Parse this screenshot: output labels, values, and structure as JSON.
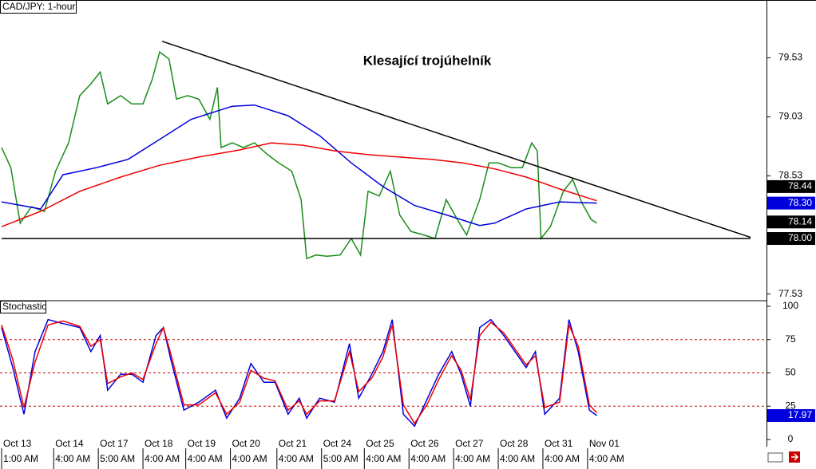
{
  "chart_data": [
    {
      "type": "line",
      "title": "CAD/JPY: 1-hour",
      "annotation": "Klesající trojúhelník",
      "xlim": [
        0,
        411.2
      ],
      "ylim": [
        77.48,
        80.02
      ],
      "yticks": [
        79.53,
        79.03,
        78.53,
        77.53
      ],
      "series": [
        {
          "color": "#1a8c1a",
          "x": [
            0,
            5,
            10,
            16,
            23,
            29,
            36,
            42,
            48,
            53,
            57,
            64,
            70,
            76,
            81,
            85,
            90,
            94,
            100,
            106,
            112,
            116,
            118,
            124,
            130,
            136,
            143,
            149,
            156,
            161,
            164,
            169,
            175,
            182,
            188,
            193,
            197,
            203,
            209,
            214,
            220,
            227,
            233,
            239,
            245,
            250,
            257,
            262,
            267,
            274,
            280,
            285,
            288,
            290,
            295,
            302,
            307,
            312,
            317,
            320
          ],
          "values": [
            78.77,
            78.6,
            78.13,
            78.27,
            78.23,
            78.57,
            78.81,
            79.21,
            79.31,
            79.41,
            79.14,
            79.21,
            79.14,
            79.14,
            79.35,
            79.58,
            79.52,
            79.18,
            79.21,
            79.18,
            79.01,
            79.28,
            78.77,
            78.81,
            78.77,
            78.81,
            78.71,
            78.64,
            78.57,
            78.33,
            77.83,
            77.86,
            77.85,
            77.86,
            78.0,
            77.86,
            78.4,
            78.36,
            78.57,
            78.2,
            78.06,
            78.03,
            78.0,
            78.33,
            78.16,
            78.03,
            78.33,
            78.64,
            78.64,
            78.6,
            78.6,
            78.81,
            78.74,
            78.0,
            78.1,
            78.4,
            78.5,
            78.3,
            78.16,
            78.13
          ]
        },
        {
          "color": "#0000dd",
          "x": [
            0,
            21,
            33,
            51,
            68,
            85,
            102,
            124,
            136,
            154,
            171,
            188,
            205,
            222,
            239,
            257,
            265,
            282,
            300,
            320
          ],
          "values": [
            78.31,
            78.25,
            78.54,
            78.6,
            78.67,
            78.84,
            79.01,
            79.12,
            79.13,
            79.04,
            78.87,
            78.64,
            78.44,
            78.28,
            78.2,
            78.11,
            78.13,
            78.25,
            78.31,
            78.3
          ]
        },
        {
          "color": "#ee0000",
          "x": [
            0,
            21,
            42,
            64,
            85,
            106,
            128,
            145,
            162,
            180,
            197,
            214,
            231,
            248,
            265,
            282,
            300,
            320
          ],
          "values": [
            78.1,
            78.23,
            78.4,
            78.52,
            78.62,
            78.69,
            78.75,
            78.81,
            78.79,
            78.74,
            78.71,
            78.69,
            78.67,
            78.64,
            78.59,
            78.52,
            78.42,
            78.32
          ]
        }
      ],
      "trendlines": [
        {
          "x": [
            86.3,
            402.6
          ],
          "y": [
            79.67,
            78.01
          ]
        },
        {
          "x": [
            0,
            402.6
          ],
          "y": [
            78.0,
            78.0
          ]
        }
      ],
      "markers": [
        {
          "value": 78.44,
          "color": "#000000"
        },
        {
          "value": 78.3,
          "label": "78.30",
          "color": "#0000dd"
        },
        {
          "value": 78.14,
          "color": "#000000"
        },
        {
          "value": 78,
          "label": "78.00",
          "color": "#000000"
        }
      ]
    },
    {
      "type": "line",
      "title": "Stochastic",
      "xlim": [
        0,
        411.2
      ],
      "ylim": [
        -5.4,
        103.6
      ],
      "yticks": [
        100,
        75,
        50,
        25,
        0
      ],
      "levels": [
        75,
        50,
        25
      ],
      "series": [
        {
          "color": "#0000dd",
          "x": [
            0,
            6,
            12,
            18,
            25,
            33,
            42,
            48,
            53,
            57,
            64,
            70,
            76,
            83,
            87,
            91,
            98,
            106,
            115,
            121,
            128,
            134,
            141,
            147,
            154,
            160,
            164,
            171,
            179,
            187,
            192,
            199,
            205,
            210,
            216,
            222,
            229,
            235,
            242,
            247,
            252,
            257,
            263,
            270,
            276,
            282,
            287,
            292,
            300,
            305,
            310,
            316,
            320
          ],
          "values": [
            84,
            54,
            19,
            66,
            90,
            87,
            84,
            66,
            78,
            37,
            49,
            49,
            43,
            78,
            84,
            60,
            22,
            28,
            37,
            16,
            31,
            57,
            43,
            43,
            19,
            31,
            16,
            31,
            28,
            72,
            31,
            49,
            66,
            90,
            19,
            10,
            31,
            49,
            66,
            49,
            25,
            84,
            90,
            78,
            66,
            54,
            66,
            19,
            31,
            90,
            66,
            22,
            17.97
          ]
        },
        {
          "color": "#ee0000",
          "x": [
            0,
            6,
            12,
            18,
            25,
            33,
            42,
            48,
            53,
            57,
            64,
            70,
            76,
            83,
            87,
            91,
            98,
            106,
            115,
            121,
            128,
            134,
            141,
            147,
            154,
            160,
            164,
            171,
            179,
            187,
            192,
            199,
            205,
            210,
            216,
            222,
            229,
            235,
            242,
            247,
            252,
            257,
            263,
            270,
            276,
            282,
            287,
            292,
            300,
            305,
            310,
            316,
            320
          ],
          "values": [
            86,
            60,
            24,
            58,
            86,
            89,
            85,
            70,
            75,
            42,
            47,
            50,
            45,
            72,
            84,
            64,
            26,
            26,
            35,
            19,
            28,
            52,
            46,
            44,
            22,
            29,
            19,
            29,
            29,
            66,
            36,
            46,
            62,
            86,
            26,
            12,
            27,
            45,
            63,
            52,
            30,
            78,
            88,
            80,
            68,
            56,
            63,
            24,
            28,
            86,
            70,
            26,
            20
          ]
        }
      ],
      "markers": [
        {
          "value": 17.97,
          "color": "#0000dd"
        }
      ],
      "xticks": [
        {
          "value": 0,
          "label": "Oct 13"
        },
        {
          "value": 28,
          "label": "Oct 14"
        },
        {
          "value": 52,
          "label": "Oct 17"
        },
        {
          "value": 76,
          "label": "Oct 18"
        },
        {
          "value": 99,
          "label": "Oct 19"
        },
        {
          "value": 123,
          "label": "Oct 20"
        },
        {
          "value": 148,
          "label": "Oct 21"
        },
        {
          "value": 172,
          "label": "Oct 24"
        },
        {
          "value": 195,
          "label": "Oct 25"
        },
        {
          "value": 219,
          "label": "Oct 26"
        },
        {
          "value": 243,
          "label": "Oct 27"
        },
        {
          "value": 267,
          "label": "Oct 28"
        },
        {
          "value": 291,
          "label": "Oct 31"
        },
        {
          "value": 315,
          "label": "Nov 01"
        }
      ],
      "xtick_times": [
        "1:00 AM",
        "4:00 AM",
        "5:00 AM",
        "4:00 AM",
        "4:00 AM",
        "4:00 AM",
        "4:00 AM",
        "5:00 AM",
        "4:00 AM",
        "4:00 AM",
        "4:00 AM",
        "4:00 AM",
        "4:00 AM",
        "4:00 AM"
      ]
    }
  ]
}
